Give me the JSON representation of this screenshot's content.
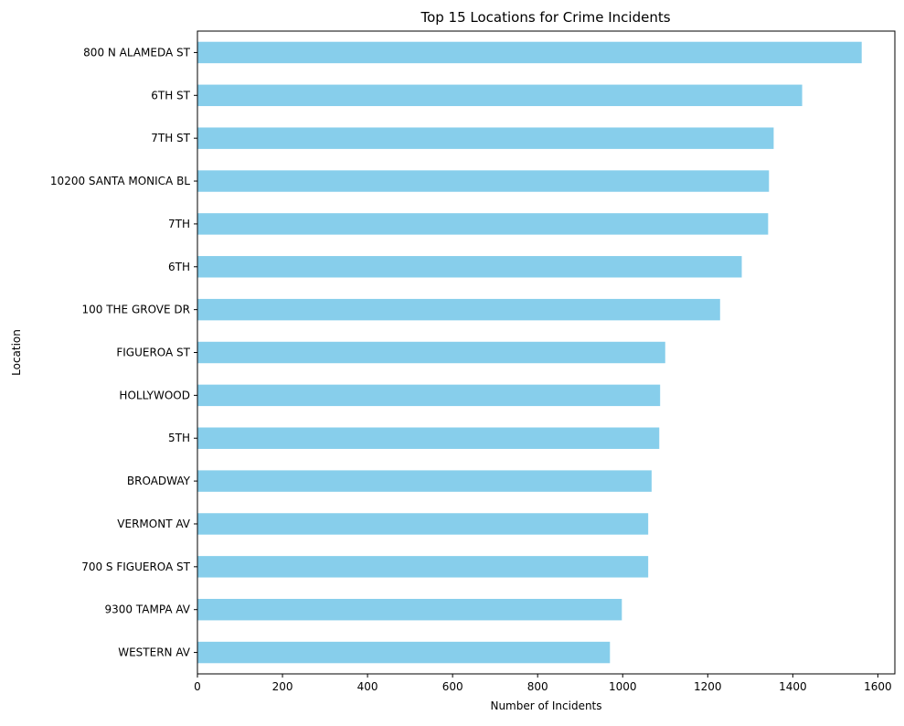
{
  "chart_data": {
    "type": "bar",
    "orientation": "horizontal",
    "title": "Top 15 Locations for Crime Incidents",
    "xlabel": "Number of Incidents",
    "ylabel": "Location",
    "categories": [
      "800 N ALAMEDA ST",
      "6TH ST",
      "7TH ST",
      "10200 SANTA MONICA BL",
      "7TH",
      "6TH",
      "100 THE GROVE DR",
      "FIGUEROA ST",
      "HOLLYWOOD",
      "5TH",
      "BROADWAY",
      "VERMONT AV",
      "700 S FIGUEROA ST",
      "9300 TAMPA AV",
      "WESTERN AV"
    ],
    "values": [
      1562,
      1422,
      1355,
      1344,
      1342,
      1280,
      1229,
      1100,
      1088,
      1086,
      1068,
      1060,
      1060,
      998,
      970
    ],
    "xlim": [
      0,
      1640
    ],
    "xticks": [
      0,
      200,
      400,
      600,
      800,
      1000,
      1200,
      1400,
      1600
    ],
    "grid": false,
    "bar_color": "#87CEEB",
    "axis_color": "#000000"
  }
}
